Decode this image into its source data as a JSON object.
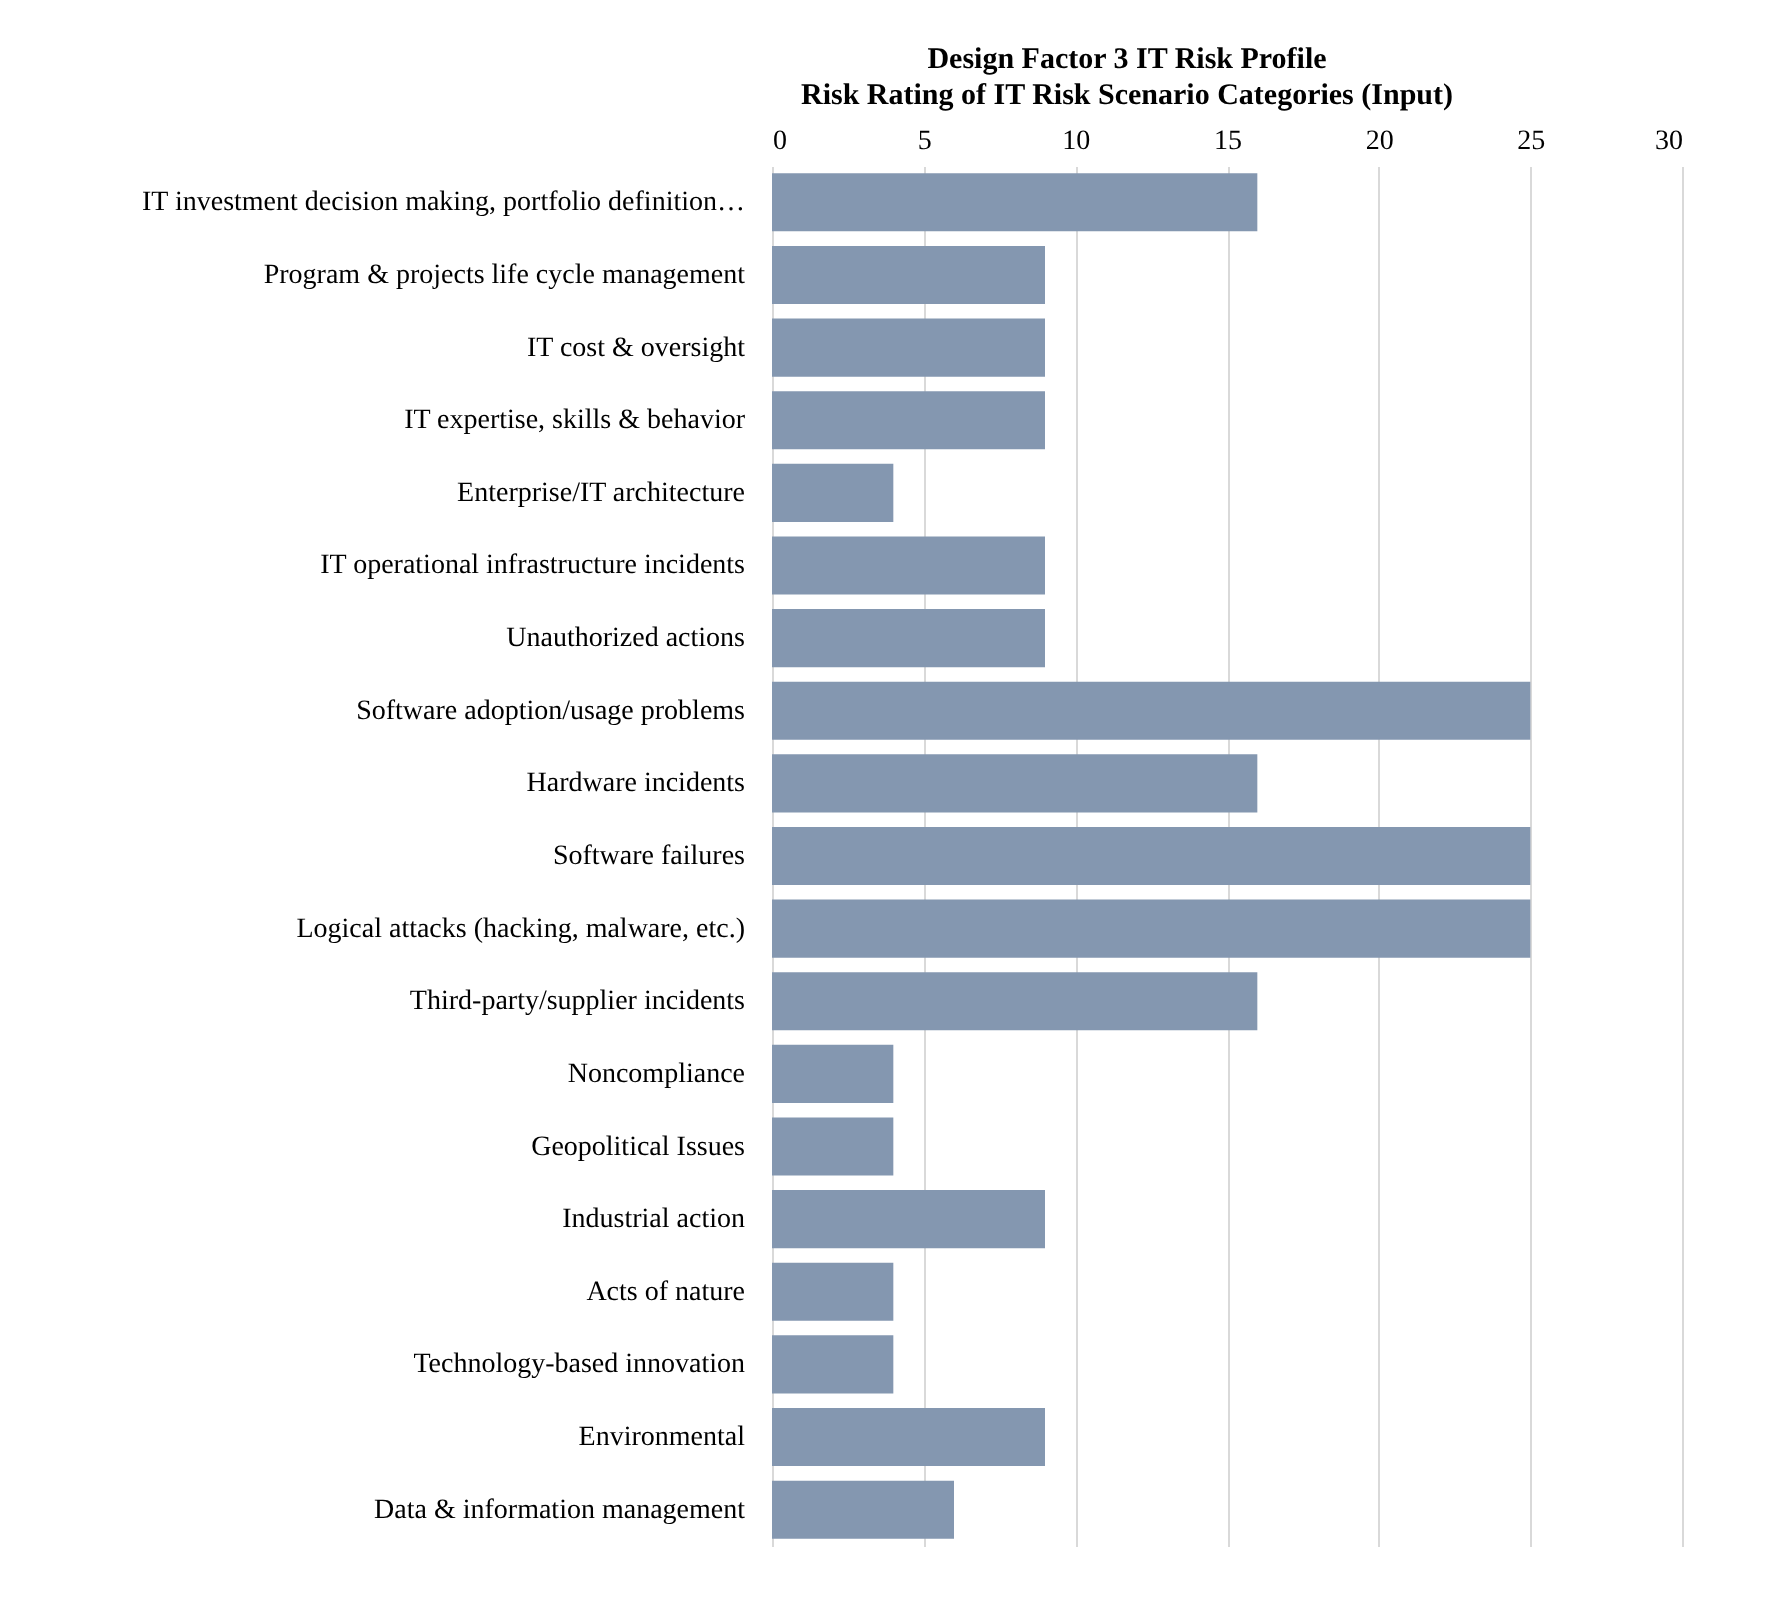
{
  "chart_data": {
    "type": "bar",
    "orientation": "horizontal",
    "title": "Design Factor  3 IT  Risk Profile",
    "subtitle": "Risk Rating  of  IT  Risk  Scenario  Categories  (Input)",
    "categories": [
      "IT investment decision making, portfolio definition…",
      "Program & projects life cycle management",
      "IT cost & oversight",
      "IT expertise, skills & behavior",
      "Enterprise/IT architecture",
      "IT operational infrastructure incidents",
      "Unauthorized actions",
      "Software adoption/usage problems",
      "Hardware incidents",
      "Software failures",
      "Logical attacks (hacking, malware, etc.)",
      "Third-party/supplier incidents",
      "Noncompliance",
      "Geopolitical Issues",
      "Industrial action",
      "Acts of nature",
      "Technology-based innovation",
      "Environmental",
      "Data & information management"
    ],
    "values": [
      16,
      9,
      9,
      9,
      4,
      9,
      9,
      25,
      16,
      25,
      25,
      16,
      4,
      4,
      9,
      4,
      4,
      9,
      6
    ],
    "color": "#8497b0",
    "xlim": [
      0,
      30
    ],
    "xticks": [
      0,
      5,
      10,
      15,
      20,
      25,
      30
    ],
    "grid": "x"
  }
}
